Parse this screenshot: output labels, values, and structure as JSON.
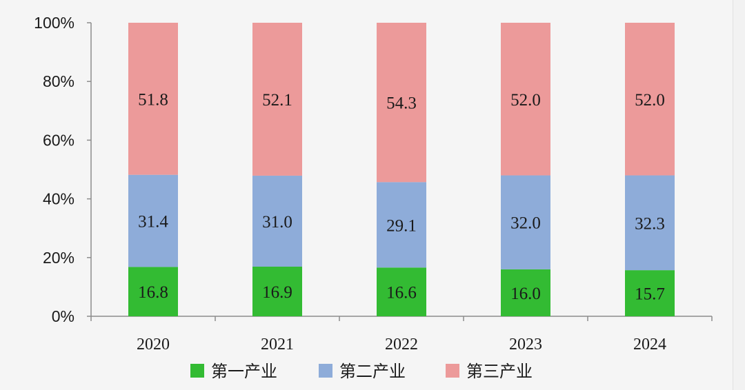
{
  "chart_data": {
    "type": "bar",
    "stacked": true,
    "categories": [
      "2020",
      "2021",
      "2022",
      "2023",
      "2024"
    ],
    "series": [
      {
        "name": "第一产业",
        "color": "#33bb33",
        "values": [
          16.8,
          16.9,
          16.6,
          16.0,
          15.7
        ],
        "labels": [
          "16.8",
          "16.9",
          "16.6",
          "16.0",
          "15.7"
        ]
      },
      {
        "name": "第二产业",
        "color": "#8eacd9",
        "values": [
          31.4,
          31.0,
          29.1,
          32.0,
          32.3
        ],
        "labels": [
          "31.4",
          "31.0",
          "29.1",
          "32.0",
          "32.3"
        ]
      },
      {
        "name": "第三产业",
        "color": "#ec9a9a",
        "values": [
          51.8,
          52.1,
          54.3,
          52.0,
          52.0
        ],
        "labels": [
          "51.8",
          "52.1",
          "54.3",
          "52.0",
          "52.0"
        ]
      }
    ],
    "yticks": [
      "0%",
      "20%",
      "40%",
      "60%",
      "80%",
      "100%"
    ],
    "ylim": [
      0,
      100
    ],
    "grid": false,
    "legend_position": "bottom"
  }
}
